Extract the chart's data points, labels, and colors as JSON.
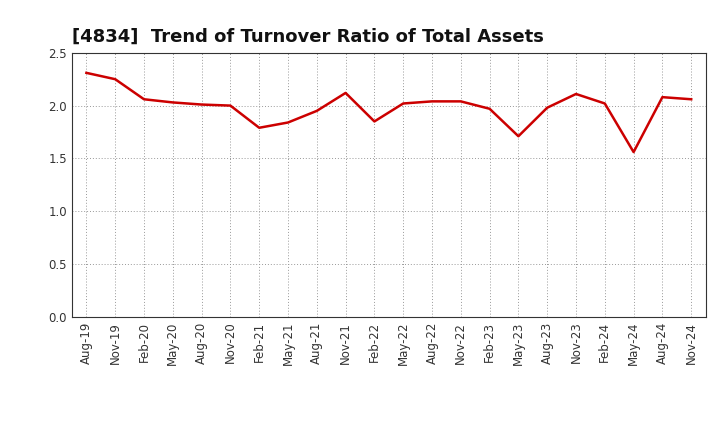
{
  "title": "[4834]  Trend of Turnover Ratio of Total Assets",
  "x_labels": [
    "Aug-19",
    "Nov-19",
    "Feb-20",
    "May-20",
    "Aug-20",
    "Nov-20",
    "Feb-21",
    "May-21",
    "Aug-21",
    "Nov-21",
    "Feb-22",
    "May-22",
    "Aug-22",
    "Nov-22",
    "Feb-23",
    "May-23",
    "Aug-23",
    "Nov-23",
    "Feb-24",
    "May-24",
    "Aug-24",
    "Nov-24"
  ],
  "values": [
    2.31,
    2.25,
    2.06,
    2.03,
    2.01,
    2.0,
    1.79,
    1.84,
    1.95,
    2.12,
    1.85,
    2.02,
    2.04,
    2.04,
    1.97,
    1.71,
    1.98,
    2.11,
    2.02,
    1.56,
    2.08,
    2.06
  ],
  "ylim": [
    0.0,
    2.5
  ],
  "yticks": [
    0.0,
    0.5,
    1.0,
    1.5,
    2.0,
    2.5
  ],
  "line_color": "#cc0000",
  "line_width": 1.8,
  "grid_color": "#999999",
  "background_color": "#ffffff",
  "title_fontsize": 13,
  "tick_fontsize": 8.5,
  "tick_color": "#333333"
}
